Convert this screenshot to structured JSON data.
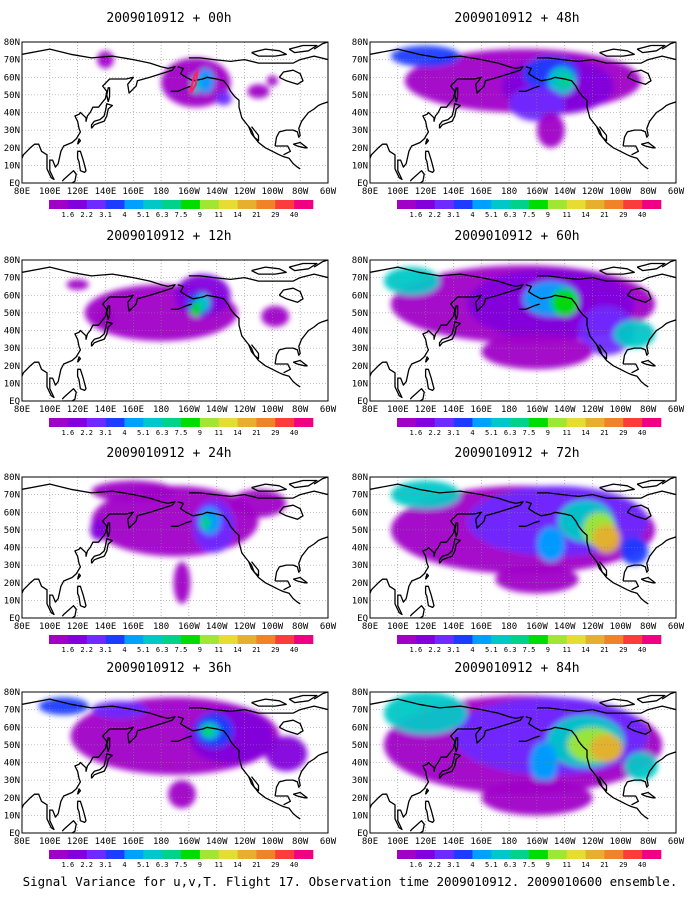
{
  "panels": [
    {
      "title": "2009010912 + 00h",
      "level": 0
    },
    {
      "title": "2009010912 + 48h",
      "level": 4
    },
    {
      "title": "2009010912 + 12h",
      "level": 1
    },
    {
      "title": "2009010912 + 60h",
      "level": 5
    },
    {
      "title": "2009010912 + 24h",
      "level": 2
    },
    {
      "title": "2009010912 + 72h",
      "level": 6
    },
    {
      "title": "2009010912 + 36h",
      "level": 3
    },
    {
      "title": "2009010912 + 84h",
      "level": 7
    }
  ],
  "lat_labels": [
    "80N",
    "70N",
    "60N",
    "50N",
    "40N",
    "30N",
    "20N",
    "10N",
    "EQ"
  ],
  "lon_labels": [
    "80E",
    "100E",
    "120E",
    "140E",
    "160E",
    "180",
    "160W",
    "140W",
    "120W",
    "100W",
    "80W",
    "60W"
  ],
  "colorbar": {
    "labels": [
      "1.6",
      "2.2",
      "3.1",
      "4",
      "5.1",
      "6.3",
      "7.5",
      "9",
      "11",
      "14",
      "21",
      "29",
      "40"
    ],
    "colors": [
      "#a000c8",
      "#8200dc",
      "#6e2aff",
      "#1e3cff",
      "#00a0ff",
      "#00c8c8",
      "#00d28c",
      "#00dc00",
      "#a0e632",
      "#e6dc32",
      "#e6af2d",
      "#f08228",
      "#fa3c3c",
      "#f00082"
    ]
  },
  "caption": "Signal Variance for u,v,T. Flight 17. Observation time 2009010912. 2009010600 ensemble."
}
